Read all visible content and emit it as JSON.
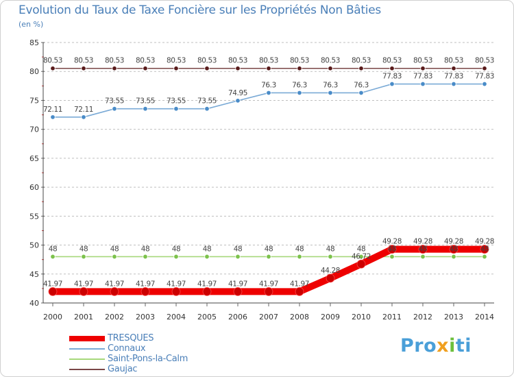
{
  "header": {
    "title": "Evolution du Taux de Taxe Foncière sur les Propriétés Non Bâties",
    "unit": "(en %)"
  },
  "brand": {
    "p": "Pro",
    "x": "x",
    "i": "i",
    "ti": "ti"
  },
  "chart_data": {
    "type": "line",
    "title": "Evolution du Taux de Taxe Foncière sur les Propriétés Non Bâties",
    "ylabel": "(en %)",
    "xlabel": "",
    "x": [
      2000,
      2001,
      2002,
      2003,
      2004,
      2005,
      2006,
      2007,
      2008,
      2009,
      2010,
      2011,
      2012,
      2013,
      2014
    ],
    "ylim": [
      40,
      85
    ],
    "yticks": [
      40,
      45,
      50,
      55,
      60,
      65,
      70,
      75,
      80,
      85
    ],
    "grid": "horizontal dashed",
    "legend": "bottom-left",
    "series": [
      {
        "name": "TRESQUES",
        "color": "#ee0000",
        "marker": "#cc0000",
        "bold": true,
        "values": [
          41.97,
          41.97,
          41.97,
          41.97,
          41.97,
          41.97,
          41.97,
          41.97,
          41.97,
          44.28,
          46.72,
          49.28,
          49.28,
          49.28,
          49.28
        ],
        "labels": [
          "41.97",
          "41.97",
          "41.97",
          "41.97",
          "41.97",
          "41.97",
          "41.97",
          "41.97",
          "41.97",
          "44.28",
          "46.72",
          "49.28",
          "49.28",
          "49.28",
          "49.28"
        ]
      },
      {
        "name": "Connaux",
        "color": "#7aaad6",
        "marker": "#4a8cc8",
        "bold": false,
        "values": [
          72.11,
          72.11,
          73.55,
          73.55,
          73.55,
          73.55,
          74.95,
          76.3,
          76.3,
          76.3,
          76.3,
          77.83,
          77.83,
          77.83,
          77.83
        ],
        "labels": [
          "72.11",
          "72.11",
          "73.55",
          "73.55",
          "73.55",
          "73.55",
          "74.95",
          "76.3",
          "76.3",
          "76.3",
          "76.3",
          "77.83",
          "77.83",
          "77.83",
          "77.83"
        ]
      },
      {
        "name": "Saint-Pons-la-Calm",
        "color": "#a6d87a",
        "marker": "#7cc24c",
        "bold": false,
        "values": [
          48,
          48,
          48,
          48,
          48,
          48,
          48,
          48,
          48,
          48,
          48,
          48,
          48,
          48,
          48
        ],
        "labels": [
          "48",
          "48",
          "48",
          "48",
          "48",
          "48",
          "48",
          "48",
          "48",
          "48",
          "48",
          "48",
          "48",
          "48",
          "48"
        ]
      },
      {
        "name": "Gaujac",
        "color": "#7a4646",
        "marker": "#5a1c1c",
        "bold": false,
        "values": [
          80.53,
          80.53,
          80.53,
          80.53,
          80.53,
          80.53,
          80.53,
          80.53,
          80.53,
          80.53,
          80.53,
          80.53,
          80.53,
          80.53,
          80.53
        ],
        "labels": [
          "80.53",
          "80.53",
          "80.53",
          "80.53",
          "80.53",
          "80.53",
          "80.53",
          "80.53",
          "80.53",
          "80.53",
          "80.53",
          "80.53",
          "80.53",
          "80.53",
          "80.53"
        ]
      }
    ]
  }
}
